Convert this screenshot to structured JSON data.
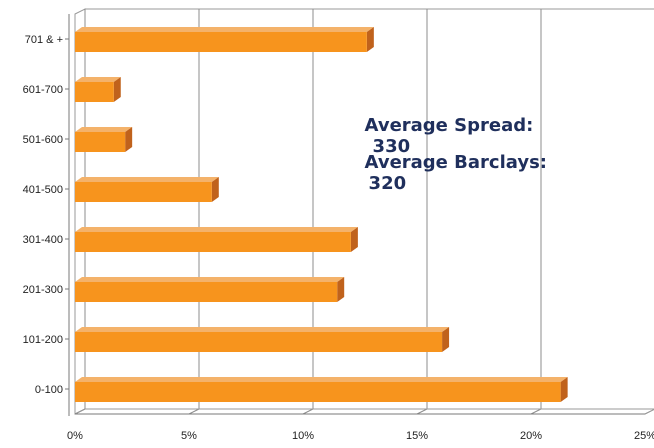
{
  "chart_data": {
    "type": "bar",
    "orientation": "horizontal",
    "categories": [
      "0-100",
      "101-200",
      "201-300",
      "301-400",
      "401-500",
      "501-600",
      "601-700",
      "701 & +"
    ],
    "values": [
      21.3,
      16.1,
      11.5,
      12.1,
      6.0,
      2.2,
      1.7,
      12.8
    ],
    "xlim": [
      0,
      25
    ],
    "x_ticks": [
      "0%",
      "5%",
      "10%",
      "15%",
      "20%",
      "25%"
    ],
    "grid": true,
    "bar_color": "#f7941d",
    "bar_side_color": "#c0621c",
    "bar_top_color": "#f4b26a",
    "annotations": [
      {
        "label": "Average Spread:",
        "value": "330"
      },
      {
        "label": "Average Barclays:",
        "value": "320"
      }
    ]
  }
}
